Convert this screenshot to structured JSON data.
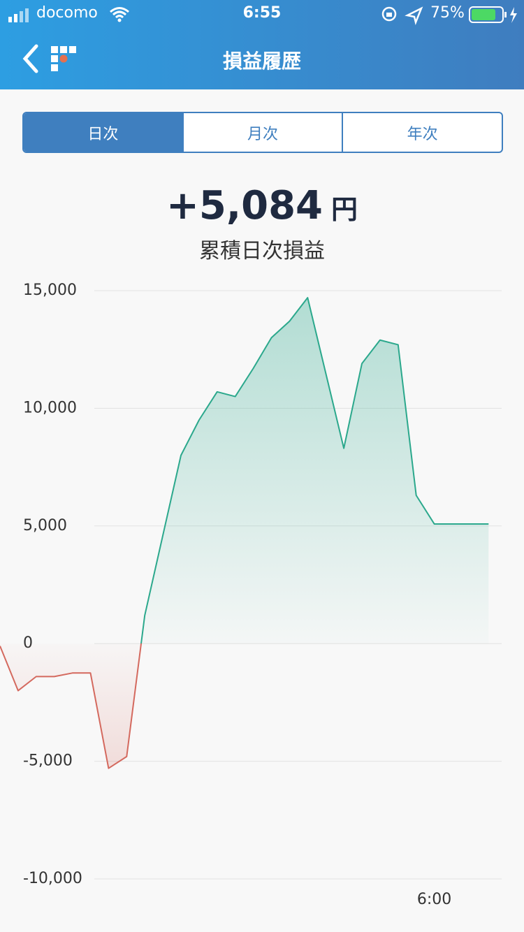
{
  "status_bar": {
    "carrier": "docomo",
    "time": "6:55",
    "battery": "75%"
  },
  "header": {
    "title": "損益履歴"
  },
  "tabs": {
    "items": [
      "日次",
      "月次",
      "年次"
    ],
    "selected": 0
  },
  "summary": {
    "value": "+5,084",
    "unit": "円",
    "caption": "累積日次損益"
  },
  "chart_data": {
    "type": "area-line",
    "categories": [
      null,
      null,
      null,
      null,
      null,
      null,
      null,
      null,
      null,
      null,
      null,
      null,
      null,
      null,
      null,
      null,
      null,
      null,
      null,
      null,
      null,
      null,
      null,
      null,
      "6:00",
      null,
      null,
      null
    ],
    "series": [
      {
        "name": "累積日次損益",
        "color": "#2ba88c",
        "negative_color": "#d4695e",
        "values": [
          -100,
          -2000,
          -1400,
          -1400,
          -1250,
          -1250,
          -5300,
          -4800,
          1200,
          4600,
          8000,
          9500,
          10700,
          10500,
          11700,
          13000,
          13700,
          14700,
          11500,
          8300,
          11900,
          12900,
          12700,
          6300,
          5084,
          5084,
          5084,
          5084
        ]
      }
    ],
    "ylim": [
      -10000,
      15000
    ],
    "yticks": [
      {
        "value": -10000,
        "label": "-10,000"
      },
      {
        "value": -5000,
        "label": "-5,000"
      },
      0,
      {
        "value": 5000,
        "label": "5,000"
      },
      {
        "value": 10000,
        "label": "10,000"
      },
      {
        "value": 15000,
        "label": "15,000"
      }
    ],
    "grid": true
  }
}
